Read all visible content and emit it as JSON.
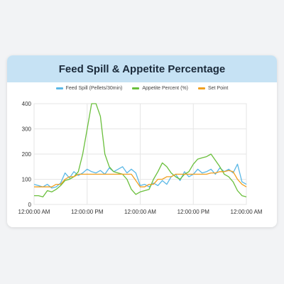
{
  "title": "Feed Spill & Appetite Percentage",
  "legend": [
    {
      "label": "Feed Spill (Pellets/30min)",
      "color": "#5bb8e6"
    },
    {
      "label": "Appetite Percent (%)",
      "color": "#6abf3c"
    },
    {
      "label": "Set Point",
      "color": "#f0a020"
    }
  ],
  "chart_data": {
    "type": "line",
    "title": "Feed Spill & Appetite Percentage",
    "xlabel": "",
    "ylabel": "",
    "x_tick_labels": [
      "12:00:00 AM",
      "12:00:00 PM",
      "12:00:00 AM",
      "12:00:00 PM",
      "12:00:00 AM"
    ],
    "x_range_hours": [
      0,
      48
    ],
    "ylim": [
      0,
      400
    ],
    "y_ticks": [
      0,
      100,
      200,
      300,
      400
    ],
    "grid": true,
    "legend_position": "top",
    "series": [
      {
        "name": "Feed Spill (Pellets/30min)",
        "color": "#5bb8e6",
        "x": [
          0,
          1,
          2,
          3,
          4,
          5,
          6,
          7,
          8,
          9,
          10,
          11,
          12,
          13,
          14,
          15,
          16,
          17,
          18,
          19,
          20,
          21,
          22,
          23,
          24,
          25,
          26,
          27,
          28,
          29,
          30,
          31,
          32,
          33,
          34,
          35,
          36,
          37,
          38,
          39,
          40,
          41,
          42,
          43,
          44,
          45,
          46,
          47,
          48
        ],
        "y": [
          80,
          75,
          70,
          80,
          65,
          70,
          85,
          125,
          105,
          130,
          115,
          125,
          140,
          130,
          125,
          135,
          120,
          145,
          130,
          140,
          150,
          125,
          140,
          125,
          75,
          80,
          70,
          85,
          75,
          95,
          80,
          110,
          120,
          95,
          130,
          110,
          120,
          140,
          125,
          130,
          140,
          120,
          145,
          130,
          140,
          125,
          160,
          90,
          80
        ]
      },
      {
        "name": "Appetite Percent (%)",
        "color": "#6abf3c",
        "x": [
          0,
          1,
          2,
          3,
          4,
          5,
          6,
          7,
          8,
          9,
          10,
          11,
          12,
          13,
          14,
          15,
          16,
          17,
          18,
          19,
          20,
          21,
          22,
          23,
          24,
          25,
          26,
          27,
          28,
          29,
          30,
          31,
          32,
          33,
          34,
          35,
          36,
          37,
          38,
          39,
          40,
          41,
          42,
          43,
          44,
          45,
          46,
          47,
          48
        ],
        "y": [
          35,
          35,
          30,
          55,
          50,
          60,
          75,
          95,
          100,
          110,
          130,
          200,
          300,
          400,
          400,
          350,
          200,
          150,
          130,
          125,
          120,
          100,
          60,
          40,
          50,
          55,
          60,
          100,
          130,
          165,
          150,
          125,
          110,
          100,
          120,
          130,
          160,
          180,
          185,
          190,
          200,
          175,
          150,
          120,
          110,
          90,
          55,
          35,
          30
        ]
      },
      {
        "name": "Set Point",
        "color": "#f0a020",
        "x": [
          0,
          4,
          5,
          6,
          7,
          8,
          9,
          10,
          11,
          12,
          13,
          14,
          15,
          16,
          17,
          18,
          19,
          20,
          21,
          22,
          23,
          24,
          25,
          26,
          27,
          28,
          29,
          30,
          31,
          32,
          33,
          34,
          35,
          36,
          37,
          38,
          39,
          40,
          41,
          42,
          43,
          44,
          45,
          46,
          47,
          48
        ],
        "y": [
          70,
          70,
          80,
          80,
          100,
          110,
          110,
          120,
          120,
          120,
          120,
          120,
          120,
          120,
          120,
          120,
          120,
          120,
          120,
          120,
          95,
          70,
          70,
          80,
          80,
          100,
          100,
          110,
          110,
          120,
          120,
          120,
          120,
          120,
          120,
          120,
          120,
          125,
          125,
          130,
          130,
          135,
          130,
          100,
          80,
          70
        ]
      }
    ]
  }
}
